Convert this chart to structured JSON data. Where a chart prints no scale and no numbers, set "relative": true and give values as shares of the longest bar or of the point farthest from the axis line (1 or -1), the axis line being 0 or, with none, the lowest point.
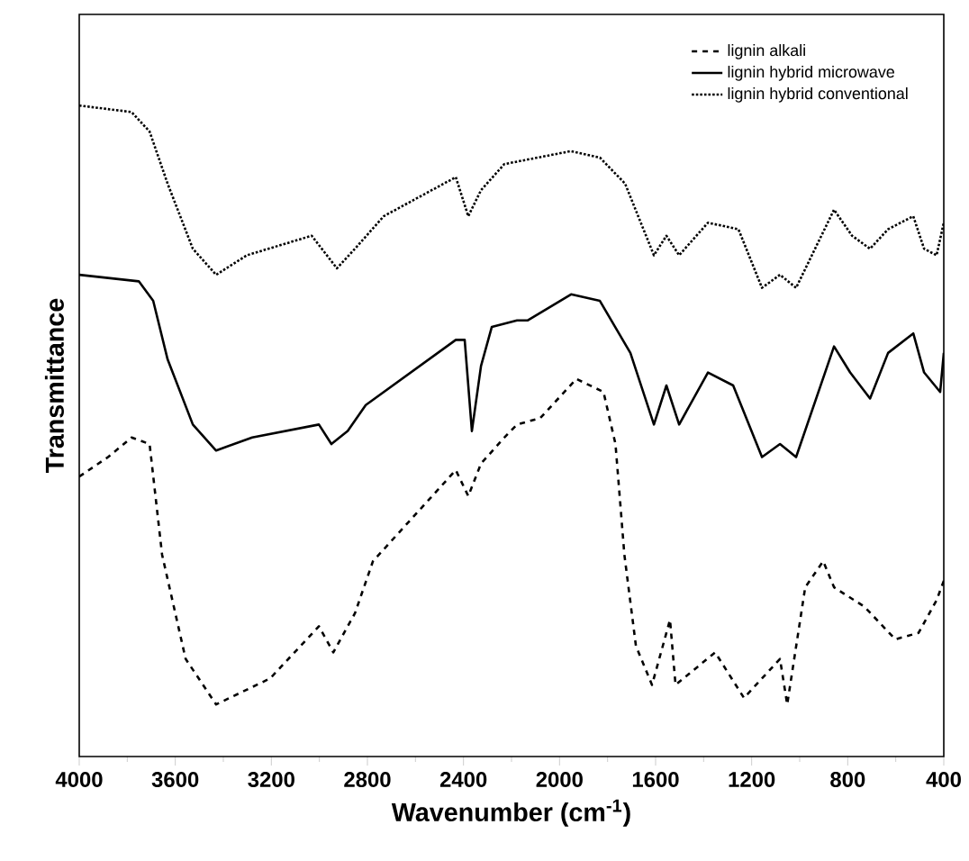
{
  "chart_data": {
    "type": "line",
    "relative": true,
    "xlabel": "Wavenumber (cm$^{-1}$)",
    "ylabel": "Transmittance",
    "xlim": [
      4000,
      400
    ],
    "xticks": [
      4000,
      3600,
      3200,
      2800,
      2400,
      2000,
      1600,
      1200,
      800,
      400
    ],
    "tick_labels": "x",
    "legend": "top right",
    "series": [
      {
        "name": "lignin alkali",
        "color": "#000000",
        "line_style": "dashed",
        "x": [
          4000,
          3880,
          3782,
          3707,
          3655,
          3557,
          3430,
          3205,
          3002,
          2942,
          2852,
          2777,
          2432,
          2380,
          2327,
          2230,
          2177,
          2080,
          1930,
          1817,
          1767,
          1730,
          1682,
          1615,
          1540,
          1517,
          1352,
          1232,
          1082,
          1052,
          977,
          902,
          857,
          730,
          602,
          505,
          430,
          400
        ],
        "values": [
          0.43,
          0.46,
          0.49,
          0.48,
          0.31,
          0.15,
          0.08,
          0.12,
          0.2,
          0.16,
          0.22,
          0.3,
          0.44,
          0.4,
          0.45,
          0.49,
          0.51,
          0.52,
          0.58,
          0.56,
          0.48,
          0.31,
          0.17,
          0.11,
          0.21,
          0.11,
          0.16,
          0.09,
          0.15,
          0.08,
          0.26,
          0.3,
          0.26,
          0.23,
          0.18,
          0.19,
          0.24,
          0.27
        ]
      },
      {
        "name": "lignin hybrid microwave",
        "color": "#000000",
        "line_style": "solid",
        "x": [
          4000,
          3752,
          3692,
          3632,
          3527,
          3430,
          3355,
          3280,
          3002,
          2950,
          2882,
          2807,
          2432,
          2395,
          2365,
          2327,
          2282,
          2177,
          2132,
          1952,
          1832,
          1705,
          1607,
          1555,
          1502,
          1382,
          1277,
          1157,
          1082,
          1015,
          857,
          790,
          707,
          632,
          527,
          482,
          415,
          400
        ],
        "values": [
          0.74,
          0.73,
          0.7,
          0.61,
          0.51,
          0.47,
          0.48,
          0.49,
          0.51,
          0.48,
          0.5,
          0.54,
          0.64,
          0.64,
          0.5,
          0.6,
          0.66,
          0.67,
          0.67,
          0.71,
          0.7,
          0.62,
          0.51,
          0.57,
          0.51,
          0.59,
          0.57,
          0.46,
          0.48,
          0.46,
          0.63,
          0.59,
          0.55,
          0.62,
          0.65,
          0.59,
          0.56,
          0.62
        ]
      },
      {
        "name": "lignin hybrid conventional",
        "color": "#000000",
        "line_style": "dotted",
        "x": [
          4000,
          3782,
          3707,
          3632,
          3527,
          3430,
          3302,
          3032,
          2927,
          2852,
          2732,
          2432,
          2380,
          2327,
          2230,
          1952,
          1832,
          1727,
          1607,
          1555,
          1502,
          1382,
          1255,
          1157,
          1082,
          1015,
          857,
          782,
          707,
          632,
          527,
          482,
          430,
          400
        ],
        "values": [
          1.0,
          0.99,
          0.96,
          0.88,
          0.78,
          0.74,
          0.77,
          0.8,
          0.75,
          0.78,
          0.83,
          0.89,
          0.83,
          0.87,
          0.91,
          0.93,
          0.92,
          0.88,
          0.77,
          0.8,
          0.77,
          0.82,
          0.81,
          0.72,
          0.74,
          0.72,
          0.84,
          0.8,
          0.78,
          0.81,
          0.83,
          0.78,
          0.77,
          0.82
        ]
      }
    ]
  }
}
